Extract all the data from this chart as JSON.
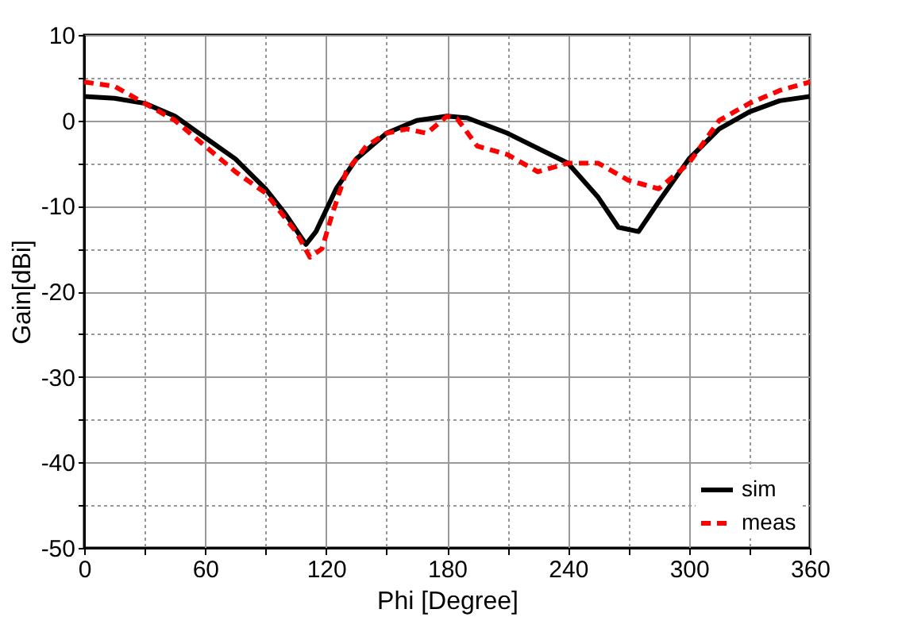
{
  "chart_data": {
    "type": "line",
    "xlabel": "Phi [Degree]",
    "ylabel": "Gain[dBi]",
    "xlim": [
      0,
      360
    ],
    "ylim": [
      -50,
      10
    ],
    "xticks": [
      0,
      {
        "value": 30,
        "label": null
      },
      60,
      {
        "value": 90,
        "label": null
      },
      120,
      {
        "value": 150,
        "label": null
      },
      180,
      {
        "value": 210,
        "label": null
      },
      240,
      {
        "value": 270,
        "label": null
      },
      300,
      {
        "value": 330,
        "label": null
      },
      360
    ],
    "yticks": [
      -50,
      {
        "value": -45,
        "label": null
      },
      -40,
      {
        "value": -35,
        "label": null
      },
      -30,
      {
        "value": -25,
        "label": null
      },
      -20,
      {
        "value": -15,
        "label": null
      },
      -10,
      {
        "value": -5,
        "label": null
      },
      0,
      {
        "value": 5,
        "label": null
      },
      10
    ],
    "grid": true,
    "legend": "bottom right",
    "marker": "none",
    "series": [
      {
        "name": "sim",
        "color": "#000000",
        "line_style": "solid",
        "x": [
          0,
          15,
          30,
          45,
          60,
          75,
          90,
          100,
          110,
          115,
          125,
          135,
          150,
          165,
          180,
          190,
          210,
          240,
          255,
          265,
          275,
          285,
          300,
          315,
          330,
          345,
          360
        ],
        "values": [
          2.8,
          2.6,
          2,
          0.5,
          -2,
          -4.5,
          -8,
          -11,
          -14.5,
          -13,
          -8,
          -4.5,
          -1.5,
          0,
          0.5,
          0.3,
          -1.5,
          -5,
          -9,
          -12.5,
          -13,
          -9.5,
          -4.5,
          -1,
          1,
          2.3,
          2.8
        ]
      },
      {
        "name": "meas",
        "color": "#ff0000",
        "line_style": "dashed",
        "x": [
          0,
          15,
          30,
          45,
          60,
          75,
          90,
          105,
          112,
          118,
          123,
          130,
          140,
          150,
          160,
          170,
          180,
          185,
          195,
          210,
          225,
          240,
          255,
          270,
          285,
          300,
          315,
          330,
          345,
          360
        ],
        "values": [
          4.5,
          4,
          2,
          0,
          -3,
          -6,
          -8.5,
          -13,
          -16,
          -15,
          -11,
          -6,
          -3,
          -1.5,
          -1,
          -1.5,
          0.5,
          0.2,
          -3,
          -4,
          -6,
          -5,
          -5,
          -7,
          -8,
          -5,
          0,
          2,
          3.5,
          4.5
        ]
      }
    ]
  }
}
